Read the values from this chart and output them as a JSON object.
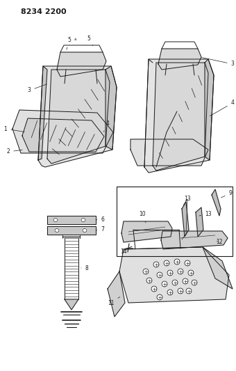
{
  "title_code": "8234 2200",
  "bg_color": "#ffffff",
  "line_color": "#1a1a1a",
  "fig_width": 3.4,
  "fig_height": 5.33,
  "dpi": 100
}
